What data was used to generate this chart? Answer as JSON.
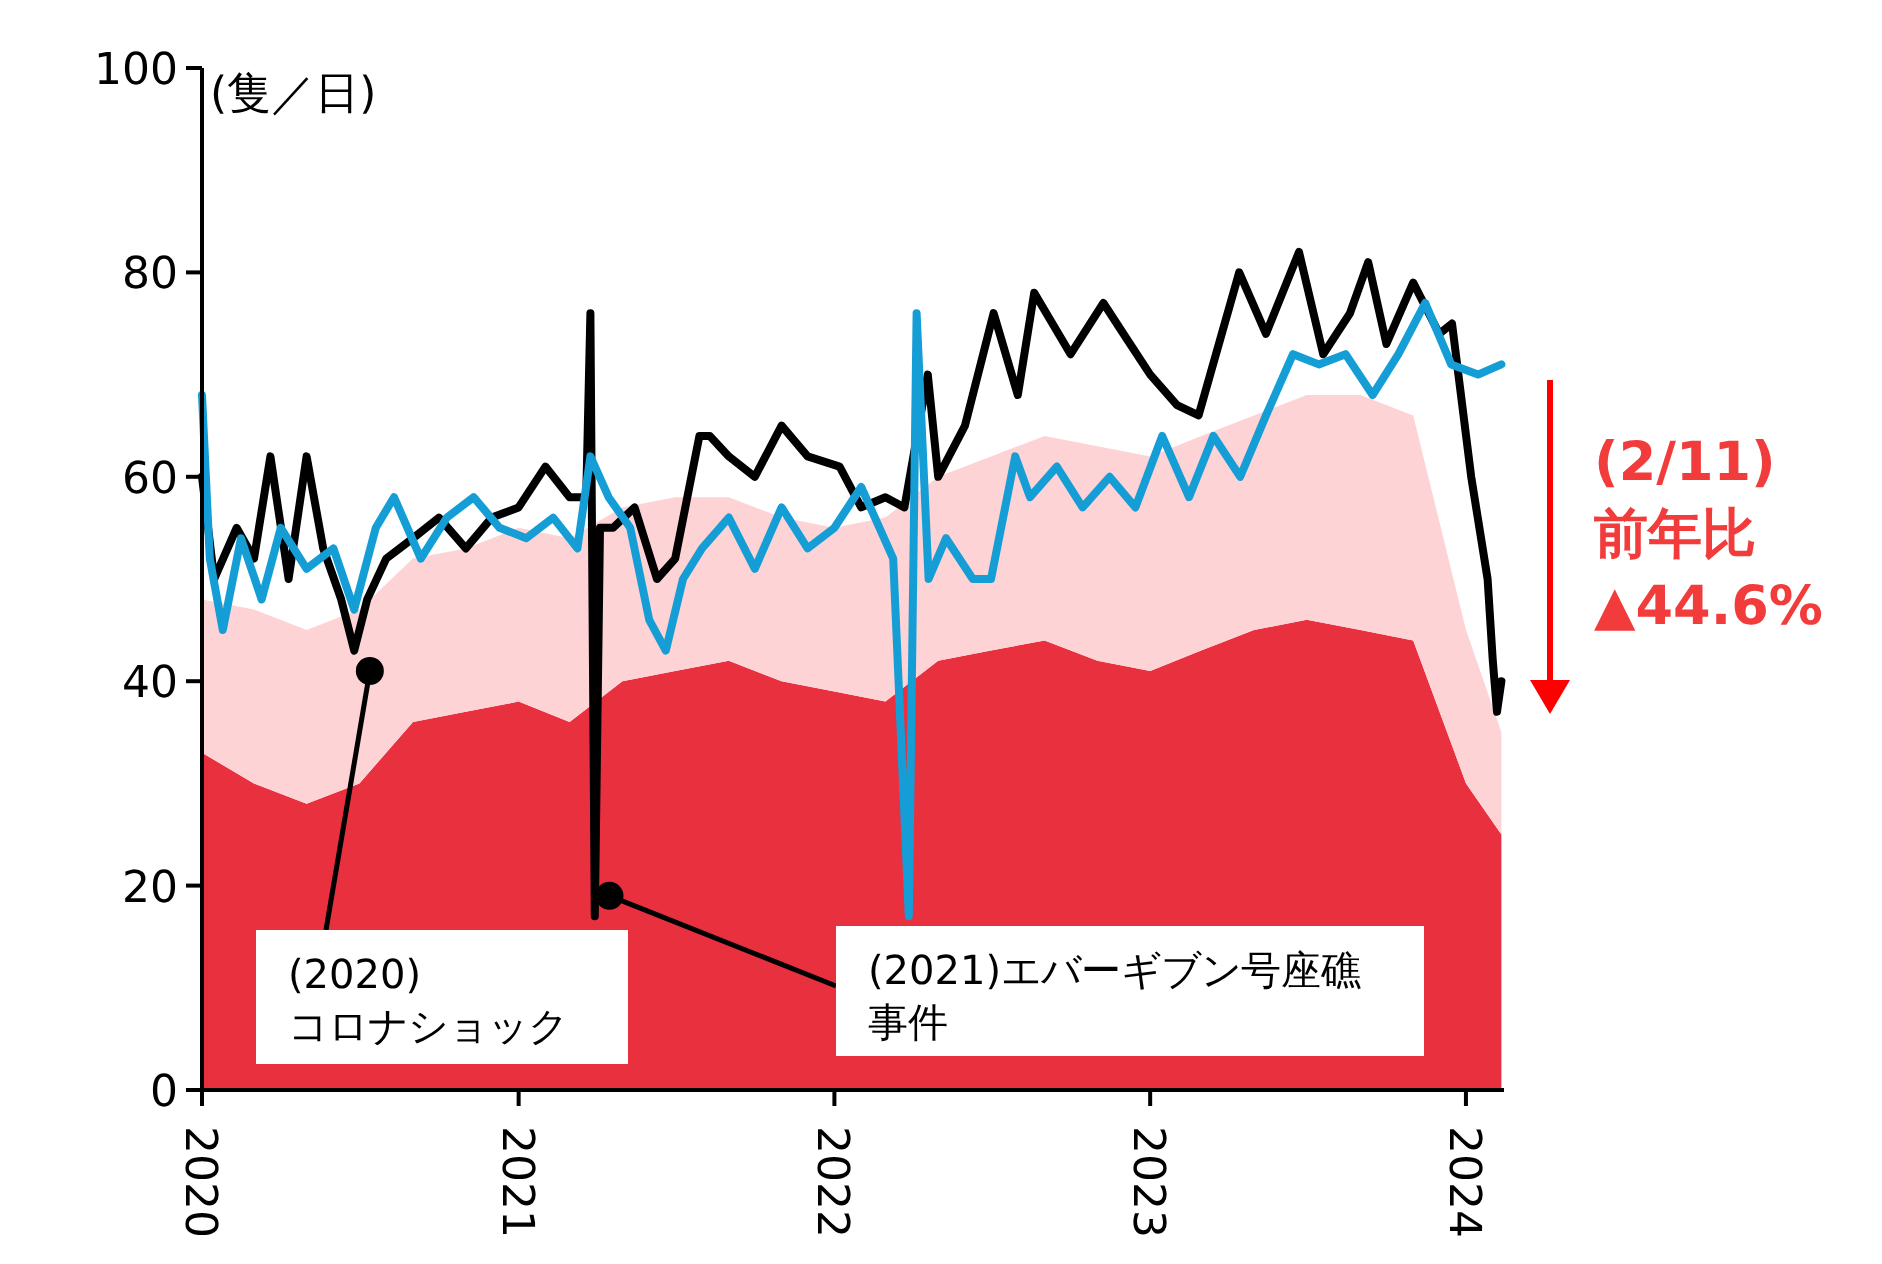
{
  "chart_data": {
    "type": "line",
    "ylabel": "(隻／日)",
    "stacked": true,
    "xlim": [
      "2020",
      "2024-02-14"
    ],
    "xticks": [
      "2020",
      "2021",
      "2022",
      "2023",
      "2024"
    ],
    "ylim": [
      0,
      100
    ],
    "yticks": [
      0,
      20,
      40,
      60,
      80,
      100
    ],
    "series": [
      {
        "type": "area",
        "color": "#e8303f",
        "x": [
          "2020-01-01",
          "2020-03-01",
          "2020-05-01",
          "2020-07-01",
          "2020-09-01",
          "2020-11-01",
          "2021-01-01",
          "2021-03-01",
          "2021-05-01",
          "2021-07-01",
          "2021-09-01",
          "2021-11-01",
          "2022-01-01",
          "2022-03-01",
          "2022-05-01",
          "2022-07-01",
          "2022-09-01",
          "2022-11-01",
          "2023-01-01",
          "2023-03-01",
          "2023-05-01",
          "2023-07-01",
          "2023-09-01",
          "2023-11-01",
          "2024-01-01",
          "2024-02-11"
        ],
        "values": [
          33,
          30,
          28,
          30,
          36,
          37,
          38,
          36,
          40,
          41,
          42,
          40,
          39,
          38,
          42,
          43,
          44,
          42,
          41,
          43,
          45,
          46,
          45,
          44,
          30,
          25
        ]
      },
      {
        "type": "area",
        "color": "#fdd3d6",
        "x": [
          "2020-01-01",
          "2020-03-01",
          "2020-05-01",
          "2020-07-01",
          "2020-09-01",
          "2020-11-01",
          "2021-01-01",
          "2021-03-01",
          "2021-05-01",
          "2021-07-01",
          "2021-09-01",
          "2021-11-01",
          "2022-01-01",
          "2022-03-01",
          "2022-05-01",
          "2022-07-01",
          "2022-09-01",
          "2022-11-01",
          "2023-01-01",
          "2023-03-01",
          "2023-05-01",
          "2023-07-01",
          "2023-09-01",
          "2023-11-01",
          "2024-01-01",
          "2024-02-11"
        ],
        "values": [
          15,
          17,
          17,
          17,
          16,
          16,
          17,
          18,
          17,
          17,
          16,
          16,
          16,
          18,
          18,
          19,
          20,
          21,
          21,
          21,
          21,
          22,
          23,
          22,
          15,
          10
        ]
      },
      {
        "color": "#000000",
        "x": [
          "2020-01-01",
          "2020-01-15",
          "2020-02-10",
          "2020-03-01",
          "2020-03-20",
          "2020-04-10",
          "2020-05-01",
          "2020-05-20",
          "2020-06-10",
          "2020-06-25",
          "2020-07-10",
          "2020-08-01",
          "2020-09-01",
          "2020-10-01",
          "2020-11-01",
          "2020-12-01",
          "2021-01-01",
          "2021-02-01",
          "2021-03-01",
          "2021-03-20",
          "2021-03-25",
          "2021-03-30",
          "2021-04-05",
          "2021-04-20",
          "2021-05-15",
          "2021-06-10",
          "2021-07-01",
          "2021-07-29",
          "2021-08-10",
          "2021-09-01",
          "2021-10-01",
          "2021-11-01",
          "2021-12-01",
          "2022-01-07",
          "2022-02-01",
          "2022-03-01",
          "2022-03-23",
          "2022-04-19",
          "2022-05-01",
          "2022-06-01",
          "2022-07-04",
          "2022-08-01",
          "2022-08-20",
          "2022-10-01",
          "2022-11-08",
          "2022-12-01",
          "2023-01-01",
          "2023-02-01",
          "2023-02-26",
          "2023-04-14",
          "2023-05-15",
          "2023-06-22",
          "2023-07-20",
          "2023-08-20",
          "2023-09-10",
          "2023-10-01",
          "2023-11-01",
          "2023-12-01",
          "2023-12-16",
          "2024-01-07",
          "2024-01-26",
          "2024-02-01",
          "2024-02-06",
          "2024-02-11"
        ],
        "values": [
          60,
          50,
          55,
          52,
          62,
          50,
          62,
          53,
          48,
          43,
          48,
          52,
          54,
          56,
          53,
          56,
          57,
          61,
          58,
          58,
          76,
          17,
          55,
          55,
          57,
          50,
          52,
          64,
          64,
          62,
          60,
          65,
          62,
          61,
          57,
          58,
          57,
          70,
          60,
          65,
          76,
          68,
          78,
          72,
          77,
          74,
          70,
          67,
          66,
          80,
          74,
          82,
          72,
          76,
          81,
          73,
          79,
          74,
          75,
          60,
          50,
          42,
          37,
          40
        ]
      },
      {
        "color": "#159ed6",
        "x": [
          "2020-01-01",
          "2020-01-10",
          "2020-01-25",
          "2020-02-15",
          "2020-03-10",
          "2020-04-01",
          "2020-05-01",
          "2020-06-01",
          "2020-06-25",
          "2020-07-20",
          "2020-08-10",
          "2020-09-10",
          "2020-10-10",
          "2020-11-10",
          "2020-12-10",
          "2021-01-10",
          "2021-02-10",
          "2021-03-10",
          "2021-03-25",
          "2021-04-15",
          "2021-05-10",
          "2021-06-01",
          "2021-06-20",
          "2021-07-10",
          "2021-08-01",
          "2021-09-01",
          "2021-10-01",
          "2021-11-01",
          "2021-12-01",
          "2022-01-01",
          "2022-02-01",
          "2022-03-10",
          "2022-03-28",
          "2022-04-06",
          "2022-04-20",
          "2022-05-10",
          "2022-06-10",
          "2022-07-01",
          "2022-07-29",
          "2022-08-15",
          "2022-09-15",
          "2022-10-15",
          "2022-11-15",
          "2022-12-15",
          "2023-01-15",
          "2023-02-15",
          "2023-03-15",
          "2023-04-15",
          "2023-05-15",
          "2023-06-15",
          "2023-07-15",
          "2023-08-15",
          "2023-09-15",
          "2023-10-15",
          "2023-11-15",
          "2023-12-15",
          "2024-01-15",
          "2024-02-11"
        ],
        "values": [
          68,
          52,
          45,
          54,
          48,
          55,
          51,
          53,
          47,
          55,
          58,
          52,
          56,
          58,
          55,
          54,
          56,
          53,
          62,
          58,
          55,
          46,
          43,
          50,
          53,
          56,
          51,
          57,
          53,
          55,
          59,
          52,
          17,
          76,
          50,
          54,
          50,
          50,
          62,
          58,
          61,
          57,
          60,
          57,
          64,
          58,
          64,
          60,
          66,
          72,
          71,
          72,
          68,
          72,
          77,
          71,
          70,
          71
        ]
      }
    ],
    "annotations": [
      {
        "text": "(2020)\nコロナショック",
        "x": "2020-07-13",
        "y": 41
      },
      {
        "text": "(2021)エバーギブン号座礁事件",
        "x": "2021-04-16",
        "y": 19
      },
      "(2/11)\n前年比\n▲44.6%"
    ]
  }
}
